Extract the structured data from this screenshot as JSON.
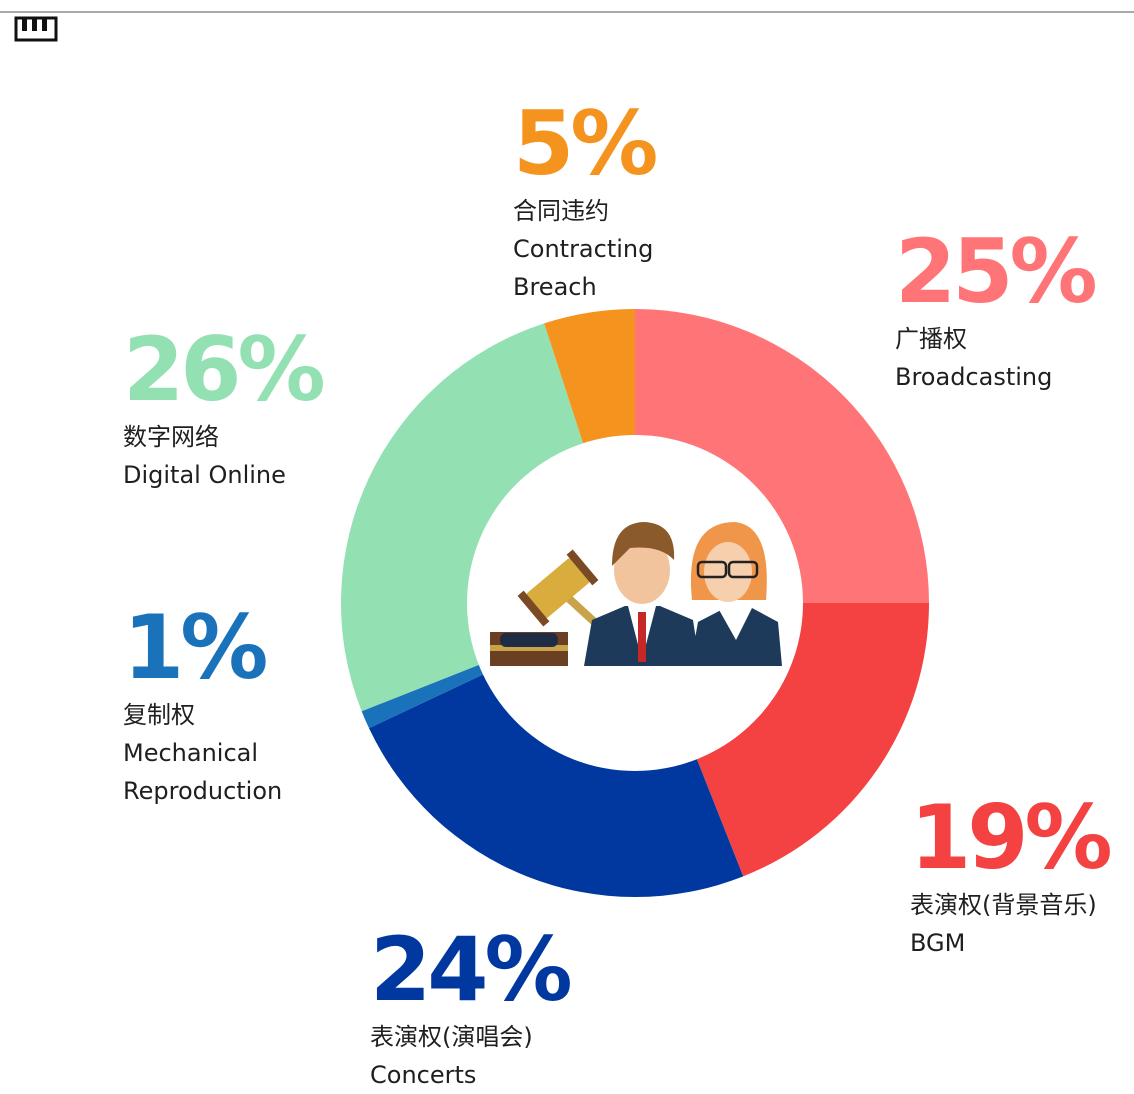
{
  "chart_data": {
    "type": "donut",
    "categories": [
      "Broadcasting",
      "BGM",
      "Concerts",
      "Mechanical Reproduction",
      "Digital Online",
      "Contracting Breach"
    ],
    "categories_zh": [
      "广播权",
      "表演权(背景音乐)",
      "表演权(演唱会)",
      "复制权",
      "数字网络",
      "合同违约"
    ],
    "values": [
      25,
      19,
      24,
      1,
      26,
      5
    ],
    "value_labels": [
      "25%",
      "19%",
      "24%",
      "1%",
      "26%",
      "5%"
    ],
    "colors": [
      "#ff7577",
      "#f44141",
      "#0038a0",
      "#1a73ba",
      "#93e0b2",
      "#f5931f"
    ]
  }
}
